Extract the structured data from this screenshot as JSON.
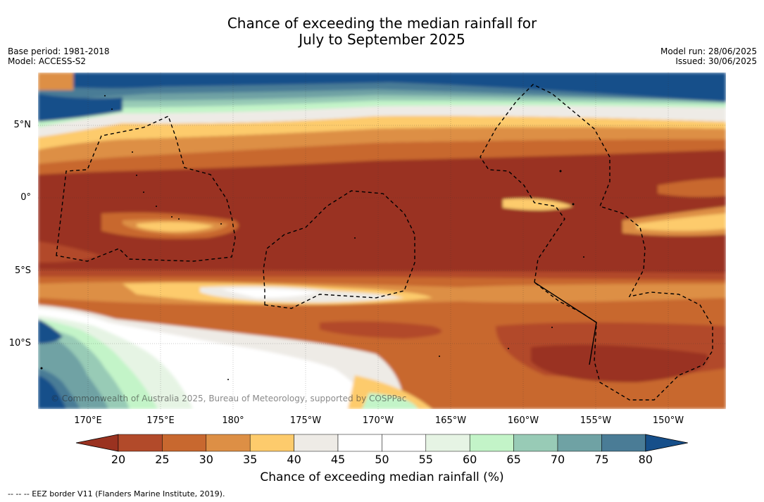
{
  "title_line1": "Chance of exceeding the median rainfall for",
  "title_line2": "July to September 2025",
  "base_period": "Base period: 1981-2018",
  "model": "Model: ACCESS-S2",
  "model_run": "Model run: 28/06/2025",
  "issued": "Issued: 30/06/2025",
  "credit": "© Commonwealth of Australia 2025, Bureau of Meteorology, supported by COSPPac",
  "footnote": "--  --  -- EEZ border V11 (Flanders Marine Institute, 2019).",
  "lat_labels": [
    "5°N",
    "0°",
    "5°S",
    "10°S"
  ],
  "lon_labels": [
    "170°E",
    "175°E",
    "180°",
    "175°W",
    "170°W",
    "165°W",
    "160°W",
    "155°W",
    "150°W"
  ],
  "colorbar": {
    "title": "Chance of exceeding median rainfall (%)",
    "ticks": [
      "20",
      "25",
      "30",
      "35",
      "40",
      "45",
      "50",
      "55",
      "60",
      "65",
      "70",
      "75",
      "80"
    ],
    "colors": [
      "#9a3220",
      "#b24a2a",
      "#c8682f",
      "#dd8f45",
      "#fdcb6c",
      "#eeebe6",
      "#ffffff",
      "#ffffff",
      "#e6f4e4",
      "#c3f4c8",
      "#98cbb6",
      "#6fa2a4",
      "#4a7c96",
      "#164f8a"
    ]
  }
}
